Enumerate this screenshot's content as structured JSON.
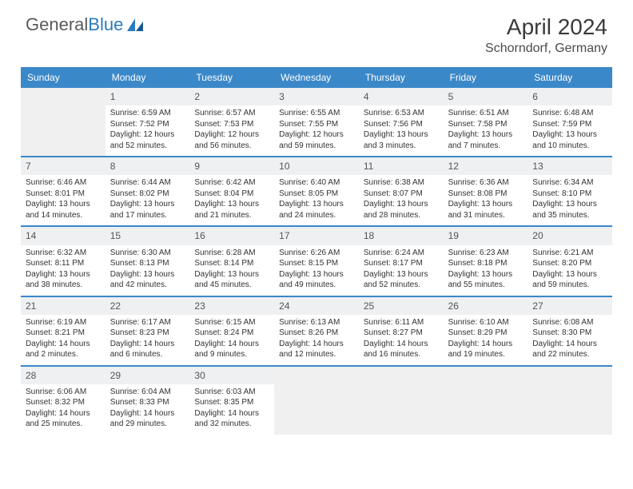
{
  "logo": {
    "word1": "General",
    "word2": "Blue"
  },
  "title": "April 2024",
  "location": "Schorndorf, Germany",
  "dayNames": [
    "Sunday",
    "Monday",
    "Tuesday",
    "Wednesday",
    "Thursday",
    "Friday",
    "Saturday"
  ],
  "colors": {
    "headerBg": "#3b88c9",
    "headerText": "#ffffff",
    "rowBorder": "#3b88c9",
    "dayStrip": "#eef0f1",
    "emptyBg": "#f0f0f0"
  },
  "weeks": [
    [
      {
        "empty": true
      },
      {
        "day": "1",
        "sunrise": "Sunrise: 6:59 AM",
        "sunset": "Sunset: 7:52 PM",
        "daylight": "Daylight: 12 hours and 52 minutes."
      },
      {
        "day": "2",
        "sunrise": "Sunrise: 6:57 AM",
        "sunset": "Sunset: 7:53 PM",
        "daylight": "Daylight: 12 hours and 56 minutes."
      },
      {
        "day": "3",
        "sunrise": "Sunrise: 6:55 AM",
        "sunset": "Sunset: 7:55 PM",
        "daylight": "Daylight: 12 hours and 59 minutes."
      },
      {
        "day": "4",
        "sunrise": "Sunrise: 6:53 AM",
        "sunset": "Sunset: 7:56 PM",
        "daylight": "Daylight: 13 hours and 3 minutes."
      },
      {
        "day": "5",
        "sunrise": "Sunrise: 6:51 AM",
        "sunset": "Sunset: 7:58 PM",
        "daylight": "Daylight: 13 hours and 7 minutes."
      },
      {
        "day": "6",
        "sunrise": "Sunrise: 6:48 AM",
        "sunset": "Sunset: 7:59 PM",
        "daylight": "Daylight: 13 hours and 10 minutes."
      }
    ],
    [
      {
        "day": "7",
        "sunrise": "Sunrise: 6:46 AM",
        "sunset": "Sunset: 8:01 PM",
        "daylight": "Daylight: 13 hours and 14 minutes."
      },
      {
        "day": "8",
        "sunrise": "Sunrise: 6:44 AM",
        "sunset": "Sunset: 8:02 PM",
        "daylight": "Daylight: 13 hours and 17 minutes."
      },
      {
        "day": "9",
        "sunrise": "Sunrise: 6:42 AM",
        "sunset": "Sunset: 8:04 PM",
        "daylight": "Daylight: 13 hours and 21 minutes."
      },
      {
        "day": "10",
        "sunrise": "Sunrise: 6:40 AM",
        "sunset": "Sunset: 8:05 PM",
        "daylight": "Daylight: 13 hours and 24 minutes."
      },
      {
        "day": "11",
        "sunrise": "Sunrise: 6:38 AM",
        "sunset": "Sunset: 8:07 PM",
        "daylight": "Daylight: 13 hours and 28 minutes."
      },
      {
        "day": "12",
        "sunrise": "Sunrise: 6:36 AM",
        "sunset": "Sunset: 8:08 PM",
        "daylight": "Daylight: 13 hours and 31 minutes."
      },
      {
        "day": "13",
        "sunrise": "Sunrise: 6:34 AM",
        "sunset": "Sunset: 8:10 PM",
        "daylight": "Daylight: 13 hours and 35 minutes."
      }
    ],
    [
      {
        "day": "14",
        "sunrise": "Sunrise: 6:32 AM",
        "sunset": "Sunset: 8:11 PM",
        "daylight": "Daylight: 13 hours and 38 minutes."
      },
      {
        "day": "15",
        "sunrise": "Sunrise: 6:30 AM",
        "sunset": "Sunset: 8:13 PM",
        "daylight": "Daylight: 13 hours and 42 minutes."
      },
      {
        "day": "16",
        "sunrise": "Sunrise: 6:28 AM",
        "sunset": "Sunset: 8:14 PM",
        "daylight": "Daylight: 13 hours and 45 minutes."
      },
      {
        "day": "17",
        "sunrise": "Sunrise: 6:26 AM",
        "sunset": "Sunset: 8:15 PM",
        "daylight": "Daylight: 13 hours and 49 minutes."
      },
      {
        "day": "18",
        "sunrise": "Sunrise: 6:24 AM",
        "sunset": "Sunset: 8:17 PM",
        "daylight": "Daylight: 13 hours and 52 minutes."
      },
      {
        "day": "19",
        "sunrise": "Sunrise: 6:23 AM",
        "sunset": "Sunset: 8:18 PM",
        "daylight": "Daylight: 13 hours and 55 minutes."
      },
      {
        "day": "20",
        "sunrise": "Sunrise: 6:21 AM",
        "sunset": "Sunset: 8:20 PM",
        "daylight": "Daylight: 13 hours and 59 minutes."
      }
    ],
    [
      {
        "day": "21",
        "sunrise": "Sunrise: 6:19 AM",
        "sunset": "Sunset: 8:21 PM",
        "daylight": "Daylight: 14 hours and 2 minutes."
      },
      {
        "day": "22",
        "sunrise": "Sunrise: 6:17 AM",
        "sunset": "Sunset: 8:23 PM",
        "daylight": "Daylight: 14 hours and 6 minutes."
      },
      {
        "day": "23",
        "sunrise": "Sunrise: 6:15 AM",
        "sunset": "Sunset: 8:24 PM",
        "daylight": "Daylight: 14 hours and 9 minutes."
      },
      {
        "day": "24",
        "sunrise": "Sunrise: 6:13 AM",
        "sunset": "Sunset: 8:26 PM",
        "daylight": "Daylight: 14 hours and 12 minutes."
      },
      {
        "day": "25",
        "sunrise": "Sunrise: 6:11 AM",
        "sunset": "Sunset: 8:27 PM",
        "daylight": "Daylight: 14 hours and 16 minutes."
      },
      {
        "day": "26",
        "sunrise": "Sunrise: 6:10 AM",
        "sunset": "Sunset: 8:29 PM",
        "daylight": "Daylight: 14 hours and 19 minutes."
      },
      {
        "day": "27",
        "sunrise": "Sunrise: 6:08 AM",
        "sunset": "Sunset: 8:30 PM",
        "daylight": "Daylight: 14 hours and 22 minutes."
      }
    ],
    [
      {
        "day": "28",
        "sunrise": "Sunrise: 6:06 AM",
        "sunset": "Sunset: 8:32 PM",
        "daylight": "Daylight: 14 hours and 25 minutes."
      },
      {
        "day": "29",
        "sunrise": "Sunrise: 6:04 AM",
        "sunset": "Sunset: 8:33 PM",
        "daylight": "Daylight: 14 hours and 29 minutes."
      },
      {
        "day": "30",
        "sunrise": "Sunrise: 6:03 AM",
        "sunset": "Sunset: 8:35 PM",
        "daylight": "Daylight: 14 hours and 32 minutes."
      },
      {
        "empty": true
      },
      {
        "empty": true
      },
      {
        "empty": true
      },
      {
        "empty": true
      }
    ]
  ]
}
